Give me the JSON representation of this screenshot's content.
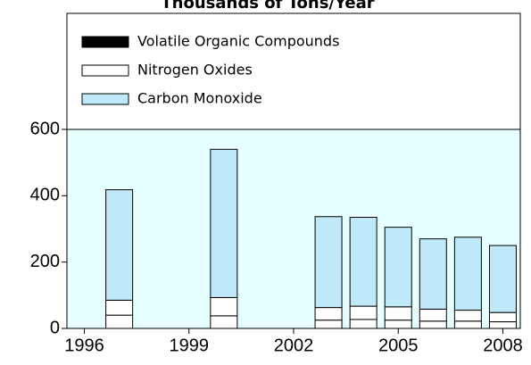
{
  "chart_data": {
    "type": "stacked_bar",
    "title": "Thousands of Tons/Year",
    "categories": [
      "1996",
      null,
      null,
      "1999",
      null,
      null,
      "2002",
      null,
      null,
      "2005",
      null,
      null,
      "2008"
    ],
    "series": [
      {
        "name": "Volatile Organic Compounds",
        "color": "#ffffff",
        "legend_color": "#000000",
        "values": [
          null,
          40,
          null,
          null,
          38,
          null,
          null,
          25,
          27,
          25,
          22,
          22,
          20
        ]
      },
      {
        "name": "Nitrogen Oxides",
        "color": "#ffffff",
        "values": [
          null,
          45,
          null,
          null,
          55,
          null,
          null,
          38,
          40,
          40,
          36,
          33,
          28
        ]
      },
      {
        "name": "Carbon Monoxide",
        "color": "#bfe8f8",
        "values": [
          null,
          333,
          null,
          null,
          447,
          null,
          null,
          274,
          268,
          240,
          212,
          220,
          202
        ]
      }
    ],
    "ylim": [
      0,
      600
    ],
    "yticks": [
      0,
      200,
      400,
      600
    ],
    "background": "#e6ffff"
  }
}
